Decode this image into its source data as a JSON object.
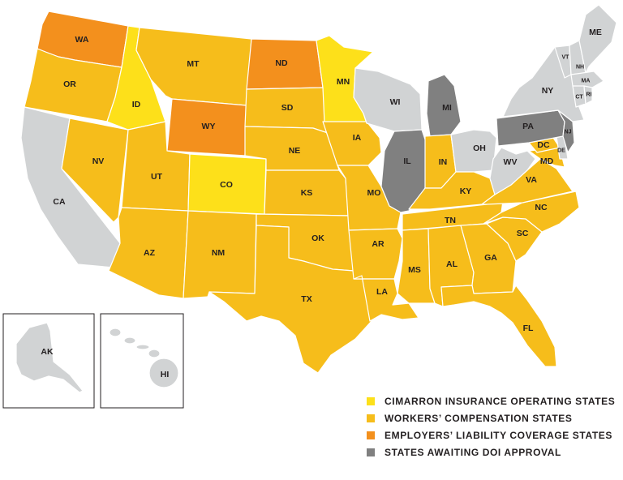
{
  "colors": {
    "operating": "#fde01a",
    "workers_comp": "#f6bd1b",
    "employers_liability": "#f3901d",
    "awaiting": "#808080",
    "other": "#d1d3d4"
  },
  "legend": [
    {
      "label": "CIMARRON INSURANCE OPERATING STATES",
      "category": "operating"
    },
    {
      "label": "WORKERS’ COMPENSATION STATES",
      "category": "workers_comp"
    },
    {
      "label": "EMPLOYERS’ LIABILITY COVERAGE STATES",
      "category": "employers_liability"
    },
    {
      "label": "STATES AWAITING DOI APPROVAL",
      "category": "awaiting"
    }
  ],
  "states": [
    {
      "abbr": "WA",
      "category": "employers_liability"
    },
    {
      "abbr": "OR",
      "category": "workers_comp"
    },
    {
      "abbr": "CA",
      "category": "other"
    },
    {
      "abbr": "NV",
      "category": "workers_comp"
    },
    {
      "abbr": "ID",
      "category": "operating"
    },
    {
      "abbr": "MT",
      "category": "workers_comp"
    },
    {
      "abbr": "WY",
      "category": "employers_liability"
    },
    {
      "abbr": "UT",
      "category": "workers_comp"
    },
    {
      "abbr": "AZ",
      "category": "workers_comp"
    },
    {
      "abbr": "CO",
      "category": "operating"
    },
    {
      "abbr": "NM",
      "category": "workers_comp"
    },
    {
      "abbr": "ND",
      "category": "employers_liability"
    },
    {
      "abbr": "SD",
      "category": "workers_comp"
    },
    {
      "abbr": "NE",
      "category": "workers_comp"
    },
    {
      "abbr": "KS",
      "category": "workers_comp"
    },
    {
      "abbr": "OK",
      "category": "workers_comp"
    },
    {
      "abbr": "TX",
      "category": "workers_comp"
    },
    {
      "abbr": "MN",
      "category": "operating"
    },
    {
      "abbr": "IA",
      "category": "workers_comp"
    },
    {
      "abbr": "MO",
      "category": "workers_comp"
    },
    {
      "abbr": "AR",
      "category": "workers_comp"
    },
    {
      "abbr": "LA",
      "category": "workers_comp"
    },
    {
      "abbr": "WI",
      "category": "other"
    },
    {
      "abbr": "IL",
      "category": "awaiting"
    },
    {
      "abbr": "MI",
      "category": "awaiting"
    },
    {
      "abbr": "IN",
      "category": "workers_comp"
    },
    {
      "abbr": "OH",
      "category": "other"
    },
    {
      "abbr": "KY",
      "category": "workers_comp"
    },
    {
      "abbr": "TN",
      "category": "workers_comp"
    },
    {
      "abbr": "MS",
      "category": "workers_comp"
    },
    {
      "abbr": "AL",
      "category": "workers_comp"
    },
    {
      "abbr": "GA",
      "category": "workers_comp"
    },
    {
      "abbr": "FL",
      "category": "workers_comp"
    },
    {
      "abbr": "SC",
      "category": "workers_comp"
    },
    {
      "abbr": "NC",
      "category": "workers_comp"
    },
    {
      "abbr": "VA",
      "category": "workers_comp"
    },
    {
      "abbr": "WV",
      "category": "other"
    },
    {
      "abbr": "MD",
      "category": "workers_comp"
    },
    {
      "abbr": "DC",
      "category": "workers_comp"
    },
    {
      "abbr": "DE",
      "category": "other"
    },
    {
      "abbr": "PA",
      "category": "awaiting"
    },
    {
      "abbr": "NJ",
      "category": "awaiting"
    },
    {
      "abbr": "NY",
      "category": "other"
    },
    {
      "abbr": "VT",
      "category": "other"
    },
    {
      "abbr": "NH",
      "category": "other"
    },
    {
      "abbr": "ME",
      "category": "other"
    },
    {
      "abbr": "MA",
      "category": "other"
    },
    {
      "abbr": "CT",
      "category": "other"
    },
    {
      "abbr": "RI",
      "category": "other"
    },
    {
      "abbr": "AK",
      "category": "other"
    },
    {
      "abbr": "HI",
      "category": "other"
    }
  ]
}
